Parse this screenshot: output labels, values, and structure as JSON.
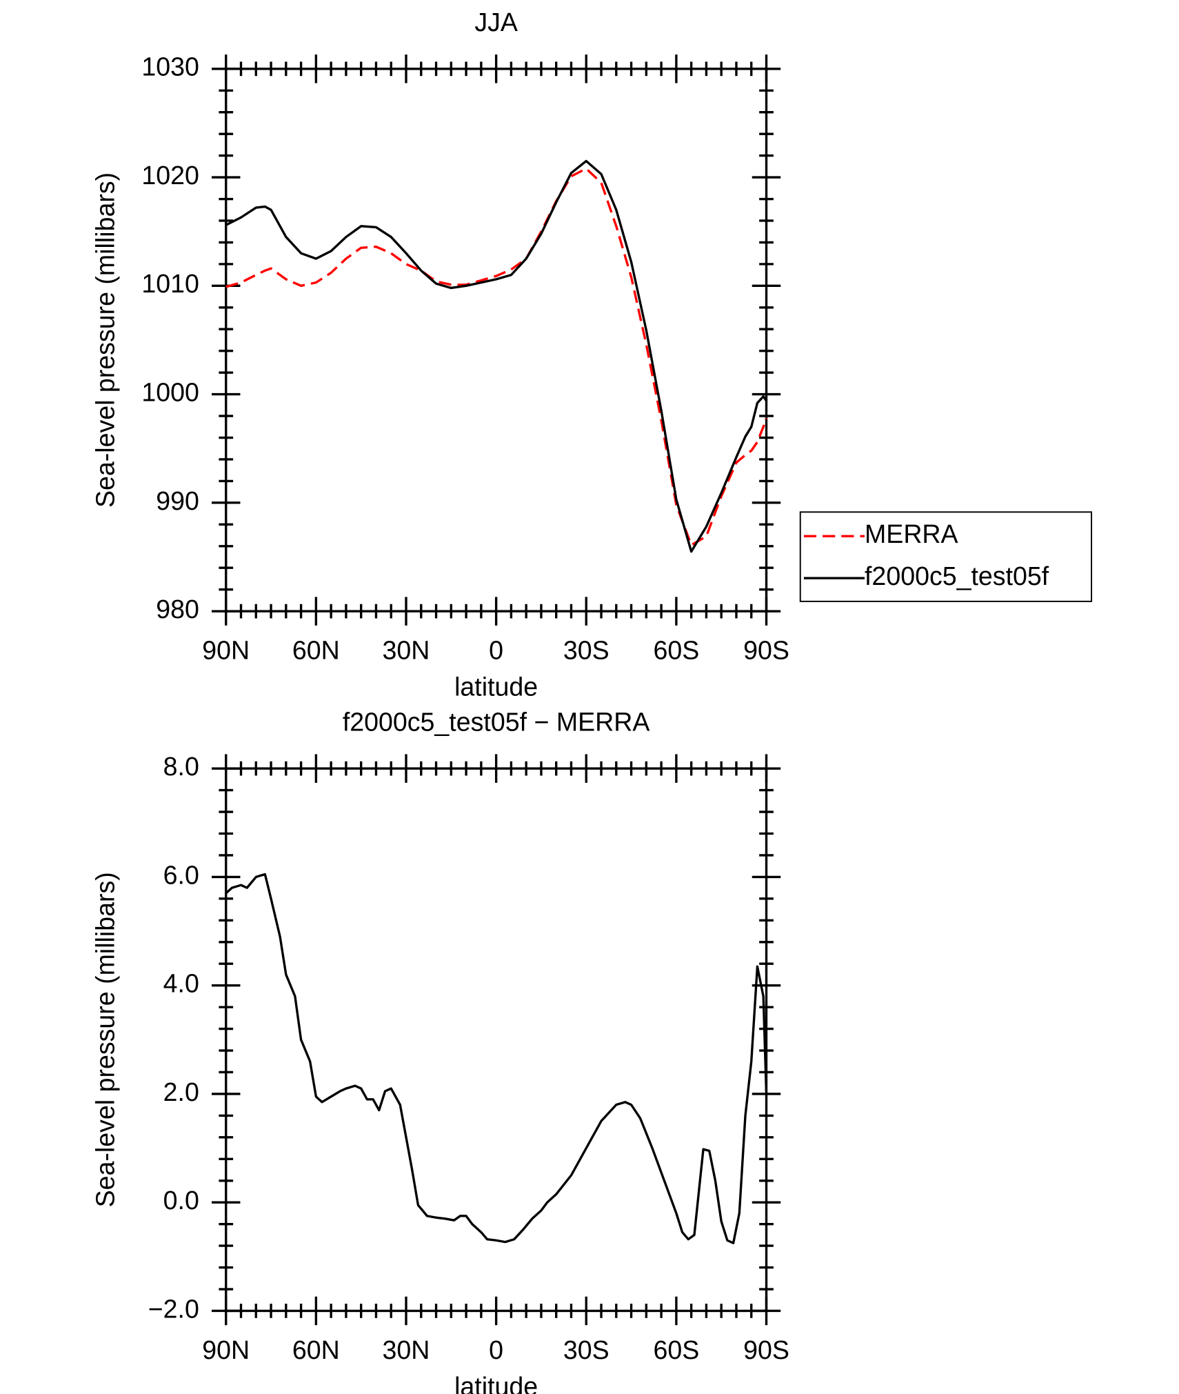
{
  "chart_data": [
    {
      "type": "line",
      "title": "JJA",
      "xlabel": "latitude",
      "ylabel": "Sea-level pressure (millibars)",
      "xlim": [
        90,
        -90
      ],
      "ylim": [
        980,
        1030
      ],
      "xticks": [
        {
          "value": 90,
          "label": "90N"
        },
        {
          "value": 60,
          "label": "60N"
        },
        {
          "value": 30,
          "label": "30N"
        },
        0,
        {
          "value": -30,
          "label": "30S"
        },
        {
          "value": -60,
          "label": "60S"
        },
        {
          "value": -90,
          "label": "90S"
        }
      ],
      "yticks": [
        980,
        990,
        1000,
        1010,
        1020,
        1030
      ],
      "legend": "right",
      "x": [
        90,
        85,
        80,
        77,
        75,
        70,
        65,
        60,
        55,
        50,
        45,
        40,
        35,
        30,
        25,
        20,
        15,
        10,
        5,
        0,
        -5,
        -10,
        -15,
        -20,
        -25,
        -30,
        -35,
        -40,
        -45,
        -50,
        -55,
        -60,
        -65,
        -70,
        -75,
        -80,
        -83,
        -85,
        -87,
        -89,
        -90
      ],
      "series": [
        {
          "name": "MERRA",
          "color": "#ff0000",
          "linestyle": "dashed",
          "values": [
            1009.9,
            1010.3,
            1011.0,
            1011.4,
            1011.6,
            1010.6,
            1010.0,
            1010.3,
            1011.2,
            1012.5,
            1013.5,
            1013.6,
            1013.0,
            1012.0,
            1011.4,
            1010.4,
            1010.1,
            1010.1,
            1010.5,
            1010.9,
            1011.5,
            1012.5,
            1015.0,
            1017.8,
            1020.1,
            1020.8,
            1019.5,
            1015.5,
            1010.8,
            1004.6,
            997.6,
            989.8,
            986.1,
            986.9,
            990.6,
            993.7,
            994.4,
            994.8,
            995.6,
            997.0,
            997.8
          ]
        },
        {
          "name": "f2000c5_test05f",
          "color": "#000000",
          "linestyle": "solid",
          "values": [
            1015.6,
            1016.3,
            1017.2,
            1017.3,
            1017.0,
            1014.5,
            1013.0,
            1012.5,
            1013.2,
            1014.5,
            1015.5,
            1015.4,
            1014.5,
            1013.0,
            1011.4,
            1010.2,
            1009.8,
            1010.0,
            1010.3,
            1010.6,
            1011.0,
            1012.5,
            1014.8,
            1017.7,
            1020.4,
            1021.5,
            1020.3,
            1017.0,
            1012.2,
            1005.9,
            998.5,
            990.3,
            985.5,
            987.8,
            990.9,
            994.2,
            996.1,
            997.0,
            999.2,
            999.8,
            999.4
          ]
        }
      ]
    },
    {
      "type": "line",
      "title": "f2000c5_test05f − MERRA",
      "xlabel": "latitude",
      "ylabel": "Sea-level pressure (millibars)",
      "xlim": [
        90,
        -90
      ],
      "ylim": [
        -2,
        8
      ],
      "xticks": [
        {
          "value": 90,
          "label": "90N"
        },
        {
          "value": 60,
          "label": "60N"
        },
        {
          "value": 30,
          "label": "30N"
        },
        0,
        {
          "value": -30,
          "label": "30S"
        },
        {
          "value": -60,
          "label": "60S"
        },
        {
          "value": -90,
          "label": "90S"
        }
      ],
      "yticks": [
        {
          "value": -2,
          "label": "−2.0"
        },
        {
          "value": 0,
          "label": "0.0"
        },
        {
          "value": 2,
          "label": "2.0"
        },
        {
          "value": 4,
          "label": "4.0"
        },
        {
          "value": 6,
          "label": "6.0"
        },
        {
          "value": 8,
          "label": "8.0"
        }
      ],
      "color": "#000000",
      "x": [
        90,
        88,
        85,
        83,
        80,
        77,
        75,
        72,
        70,
        67,
        65,
        62,
        60,
        58,
        55,
        52,
        50,
        47,
        45,
        43,
        41,
        39,
        37,
        35,
        32,
        30,
        28,
        26,
        23,
        20,
        17,
        14,
        12,
        10,
        8,
        5,
        3,
        0,
        -3,
        -6,
        -9,
        -12,
        -15,
        -17,
        -20,
        -25,
        -30,
        -35,
        -40,
        -43,
        -45,
        -48,
        -52,
        -56,
        -60,
        -62,
        -64,
        -66,
        -69,
        -71,
        -73,
        -75,
        -77,
        -79,
        -81,
        -83,
        -85,
        -87,
        -89,
        -90
      ],
      "values": [
        5.7,
        5.8,
        5.85,
        5.8,
        6.0,
        6.05,
        5.6,
        4.9,
        4.2,
        3.8,
        3.0,
        2.6,
        1.95,
        1.85,
        1.95,
        2.05,
        2.1,
        2.15,
        2.1,
        1.9,
        1.9,
        1.7,
        2.05,
        2.1,
        1.8,
        1.2,
        0.6,
        -0.05,
        -0.25,
        -0.28,
        -0.3,
        -0.33,
        -0.25,
        -0.25,
        -0.4,
        -0.55,
        -0.68,
        -0.7,
        -0.73,
        -0.68,
        -0.5,
        -0.3,
        -0.15,
        0.0,
        0.15,
        0.5,
        1.0,
        1.5,
        1.8,
        1.85,
        1.8,
        1.55,
        1.0,
        0.4,
        -0.2,
        -0.55,
        -0.68,
        -0.6,
        0.98,
        0.95,
        0.4,
        -0.35,
        -0.7,
        -0.75,
        -0.2,
        1.6,
        2.6,
        4.35,
        3.8,
        2.0
      ]
    }
  ]
}
